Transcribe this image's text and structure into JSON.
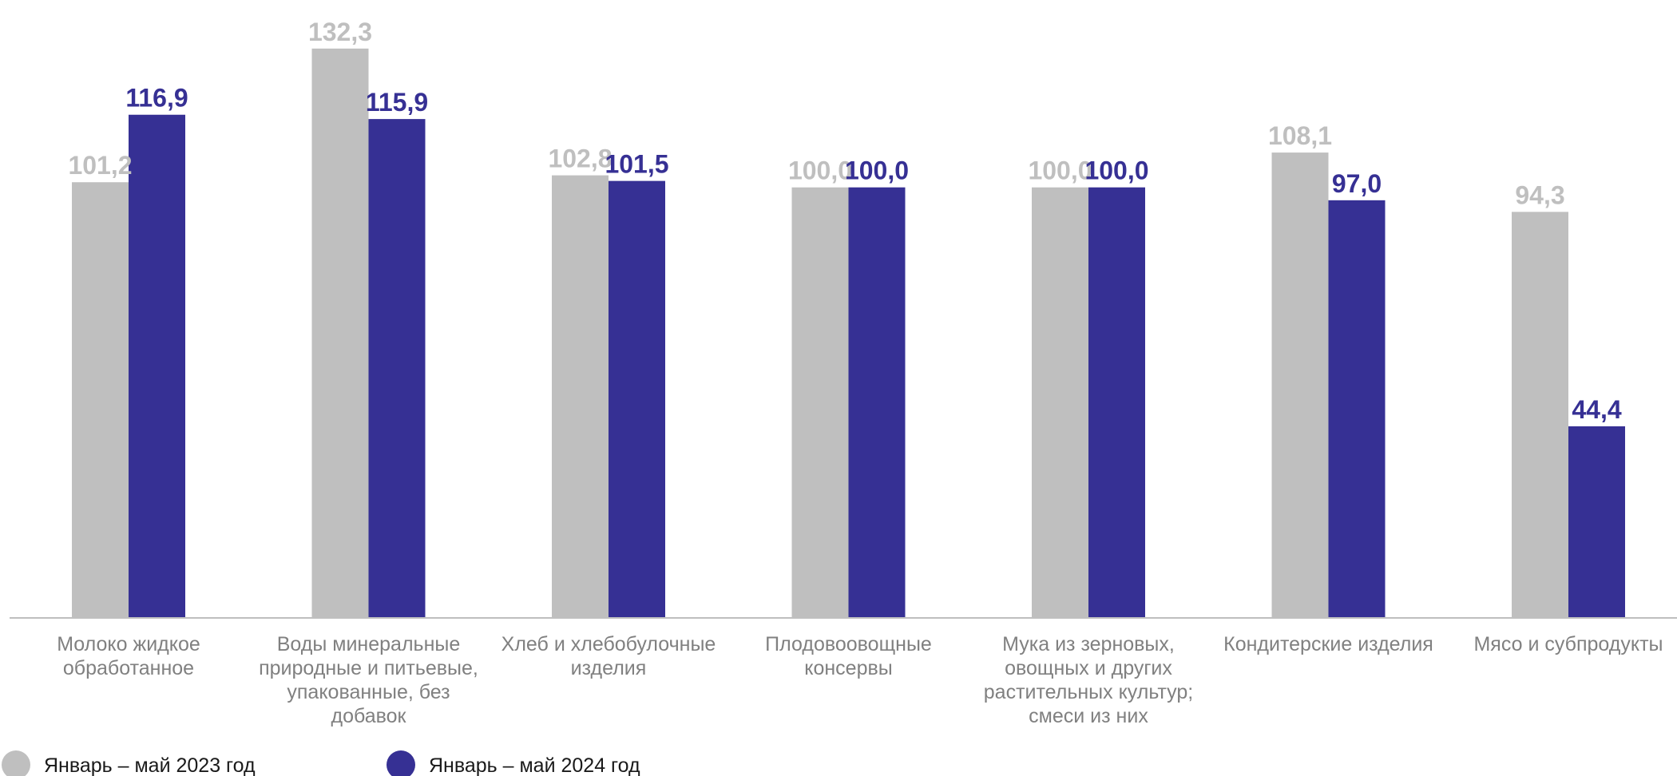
{
  "chart_data": {
    "type": "bar",
    "categories": [
      [
        "Молоко жидкое",
        "обработанное"
      ],
      [
        "Воды минеральные",
        "природные и питьевые,",
        "упакованные, без",
        "добавок"
      ],
      [
        "Хлеб и хлебобулочные",
        "изделия"
      ],
      [
        "Плодовоовощные",
        "консервы"
      ],
      [
        "Мука из зерновых,",
        "овощных и других",
        "растительных культур;",
        "смеси из них"
      ],
      [
        "Кондитерские изделия"
      ],
      [
        "Мясо и субпродукты"
      ]
    ],
    "series": [
      {
        "name": "Январь – май 2023 год",
        "color": "#bfbfbf",
        "values": [
          101.2,
          132.3,
          102.8,
          100.0,
          100.0,
          108.1,
          94.3
        ],
        "labels": [
          "101,2",
          "132,3",
          "102,8",
          "100,0",
          "100,0",
          "108,1",
          "94,3"
        ]
      },
      {
        "name": "Январь – май 2024 год",
        "color": "#363094",
        "values": [
          116.9,
          115.9,
          101.5,
          100.0,
          100.0,
          97.0,
          44.4
        ],
        "labels": [
          "116,9",
          "115,9",
          "101,5",
          "100,0",
          "100,0",
          "97,0",
          "44,4"
        ]
      }
    ],
    "ylim": [
      0,
      143.6
    ],
    "grid": false,
    "legend_position": "bottom-left",
    "axis_color": "#bfbfbf"
  }
}
